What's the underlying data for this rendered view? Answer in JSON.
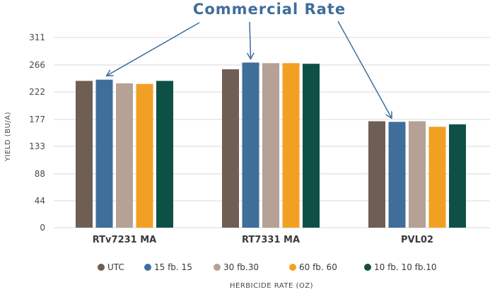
{
  "chart_data": {
    "type": "bar",
    "title": "",
    "annotation": "Commercial Rate",
    "annotation_color": "#3f6e9a",
    "xlabel": "HERBICIDE RATE (OZ)",
    "ylabel": "YIELD (BU/A)",
    "ylim": [
      0,
      311
    ],
    "yticks": [
      0,
      44,
      88,
      133,
      177,
      222,
      266,
      311
    ],
    "grid": true,
    "legend_position": "bottom",
    "categories": [
      "RTv7231 MA",
      "RT7331 MA",
      "PVL02"
    ],
    "series": [
      {
        "name": "UTC",
        "color": "#6e5e54",
        "values": [
          240,
          259,
          174
        ]
      },
      {
        "name": "15 fb. 15",
        "color": "#3f6e9a",
        "values": [
          242,
          270,
          173
        ]
      },
      {
        "name": "30 fb.30",
        "color": "#b5a196",
        "values": [
          236,
          269,
          174
        ]
      },
      {
        "name": "60 fb. 60",
        "color": "#f2a024",
        "values": [
          235,
          269,
          165
        ]
      },
      {
        "name": "10 fb. 10 fb.10",
        "color": "#0f5046",
        "values": [
          240,
          268,
          169
        ]
      }
    ],
    "annotation_targets": [
      {
        "category": "RTv7231 MA",
        "series": "15 fb. 15"
      },
      {
        "category": "RT7331 MA",
        "series": "15 fb. 15"
      },
      {
        "category": "PVL02",
        "series": "15 fb. 15"
      }
    ]
  }
}
